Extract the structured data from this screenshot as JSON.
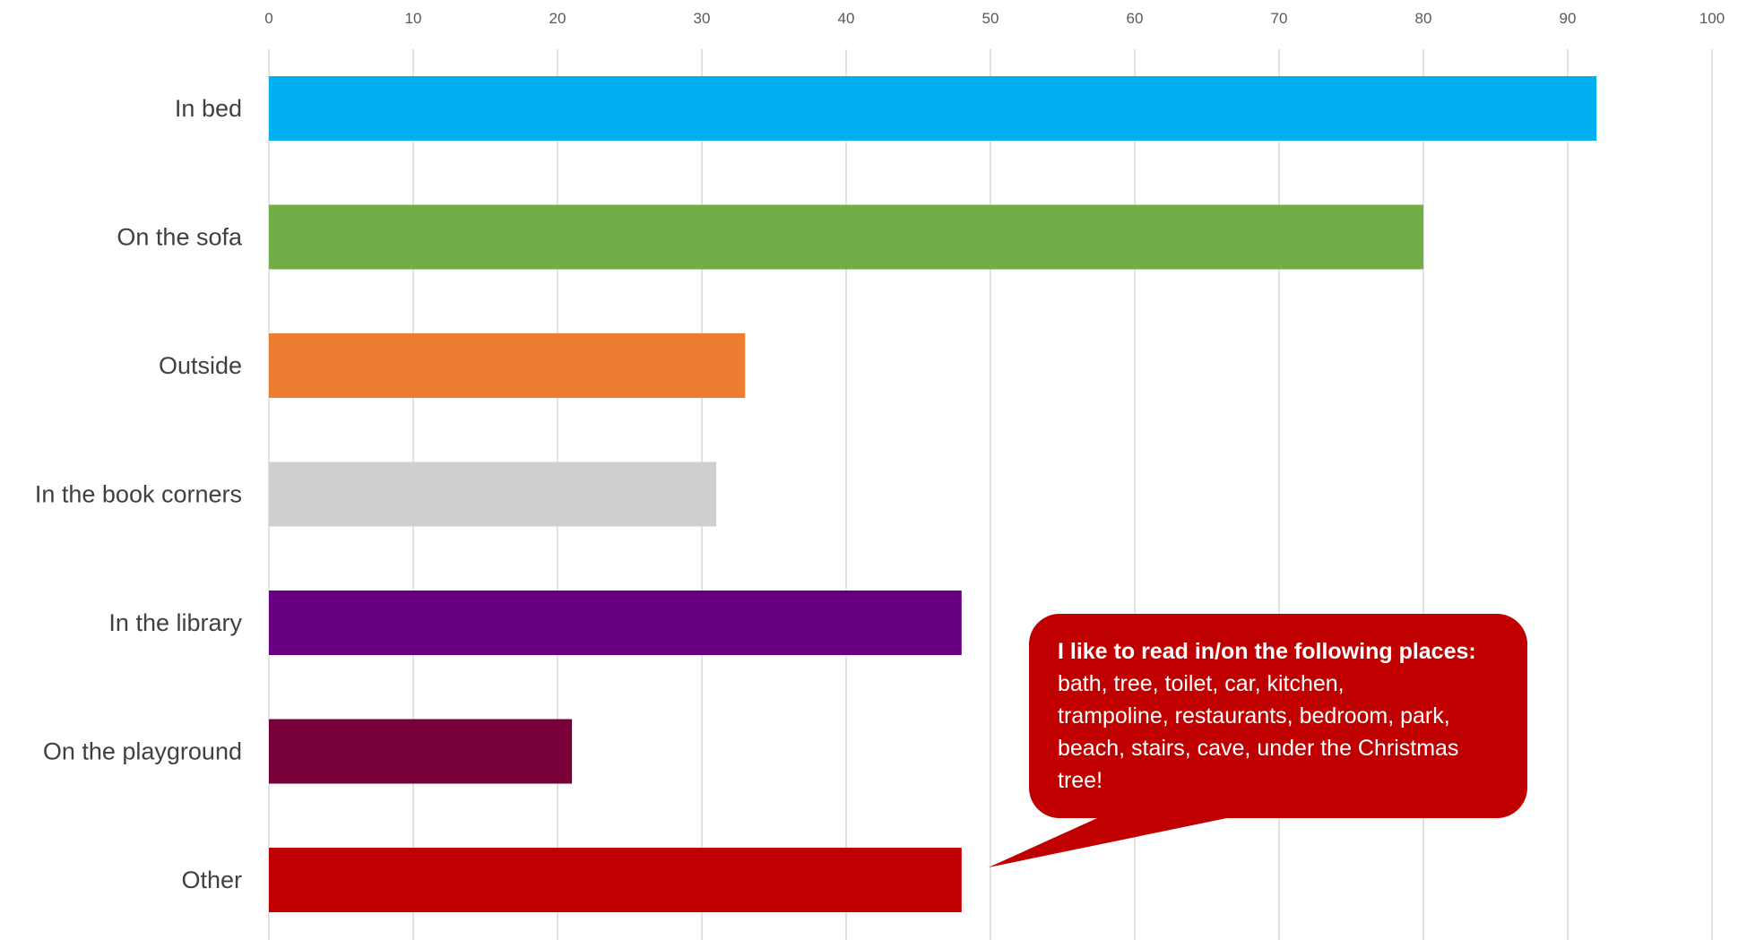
{
  "chart_data": {
    "type": "bar",
    "orientation": "horizontal",
    "categories": [
      "In bed",
      "On the sofa",
      "Outside",
      "In the book corners",
      "In the library",
      "On the playground",
      "Other"
    ],
    "values": [
      92,
      80,
      33,
      31,
      48,
      21,
      48
    ],
    "colors": [
      "#00b0f0",
      "#70ad47",
      "#ed7d31",
      "#d0cece",
      "#660080",
      "#780038",
      "#c00000"
    ],
    "xlim": [
      0,
      100
    ],
    "xticks": [
      0,
      10,
      20,
      30,
      40,
      50,
      60,
      70,
      80,
      90,
      100
    ],
    "grid": true,
    "xaxis_position": "top",
    "annotation": {
      "target_category": "Other",
      "color": "#c00000",
      "title": "I like to read in/on the following places:",
      "lines": [
        "bath, tree, toilet, car, kitchen,",
        "trampoline, restaurants, bedroom, park,",
        "beach, stairs, cave, under the Christmas",
        "tree!"
      ]
    }
  }
}
